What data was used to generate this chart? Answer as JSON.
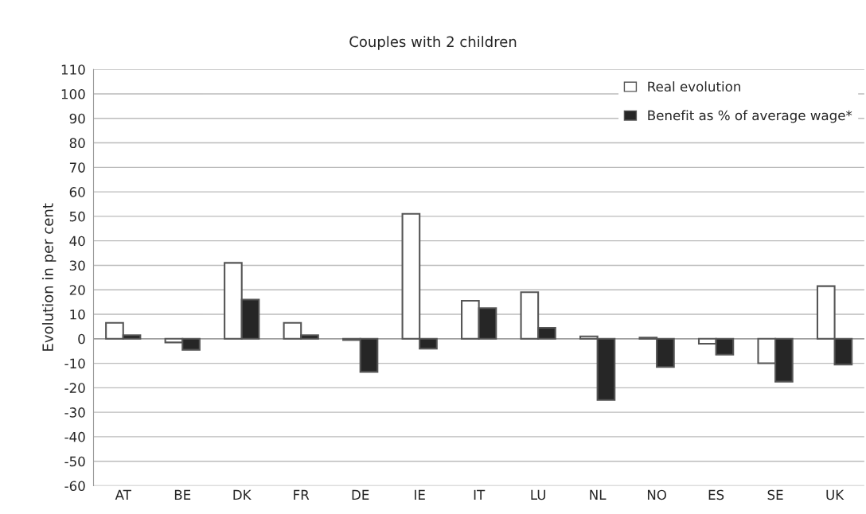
{
  "chart_data": {
    "type": "bar",
    "title": "Couples with 2 children",
    "ylabel": "Evolution in per cent",
    "categories": [
      "AT",
      "BE",
      "DK",
      "FR",
      "DE",
      "IE",
      "IT",
      "LU",
      "NL",
      "NO",
      "ES",
      "SE",
      "UK"
    ],
    "series": [
      {
        "name": "Real evolution",
        "color": "#ffffff",
        "values": [
          6.5,
          -1.5,
          31,
          6.5,
          -0.5,
          51,
          15.5,
          19,
          1,
          0.5,
          -2,
          -10,
          21.5
        ]
      },
      {
        "name": "Benefit as % of average wage*",
        "color": "#262626",
        "values": [
          1.5,
          -4.5,
          16,
          1.5,
          -13.5,
          -4,
          12.5,
          4.5,
          -25,
          -11.5,
          -6.5,
          -17.5,
          -10.5
        ]
      }
    ],
    "ylim": [
      -60,
      110
    ],
    "yticks": [
      -60,
      -50,
      -40,
      -30,
      -20,
      -10,
      0,
      10,
      20,
      30,
      40,
      50,
      60,
      70,
      80,
      90,
      100,
      110
    ],
    "grid": "y",
    "legend": "top right"
  }
}
